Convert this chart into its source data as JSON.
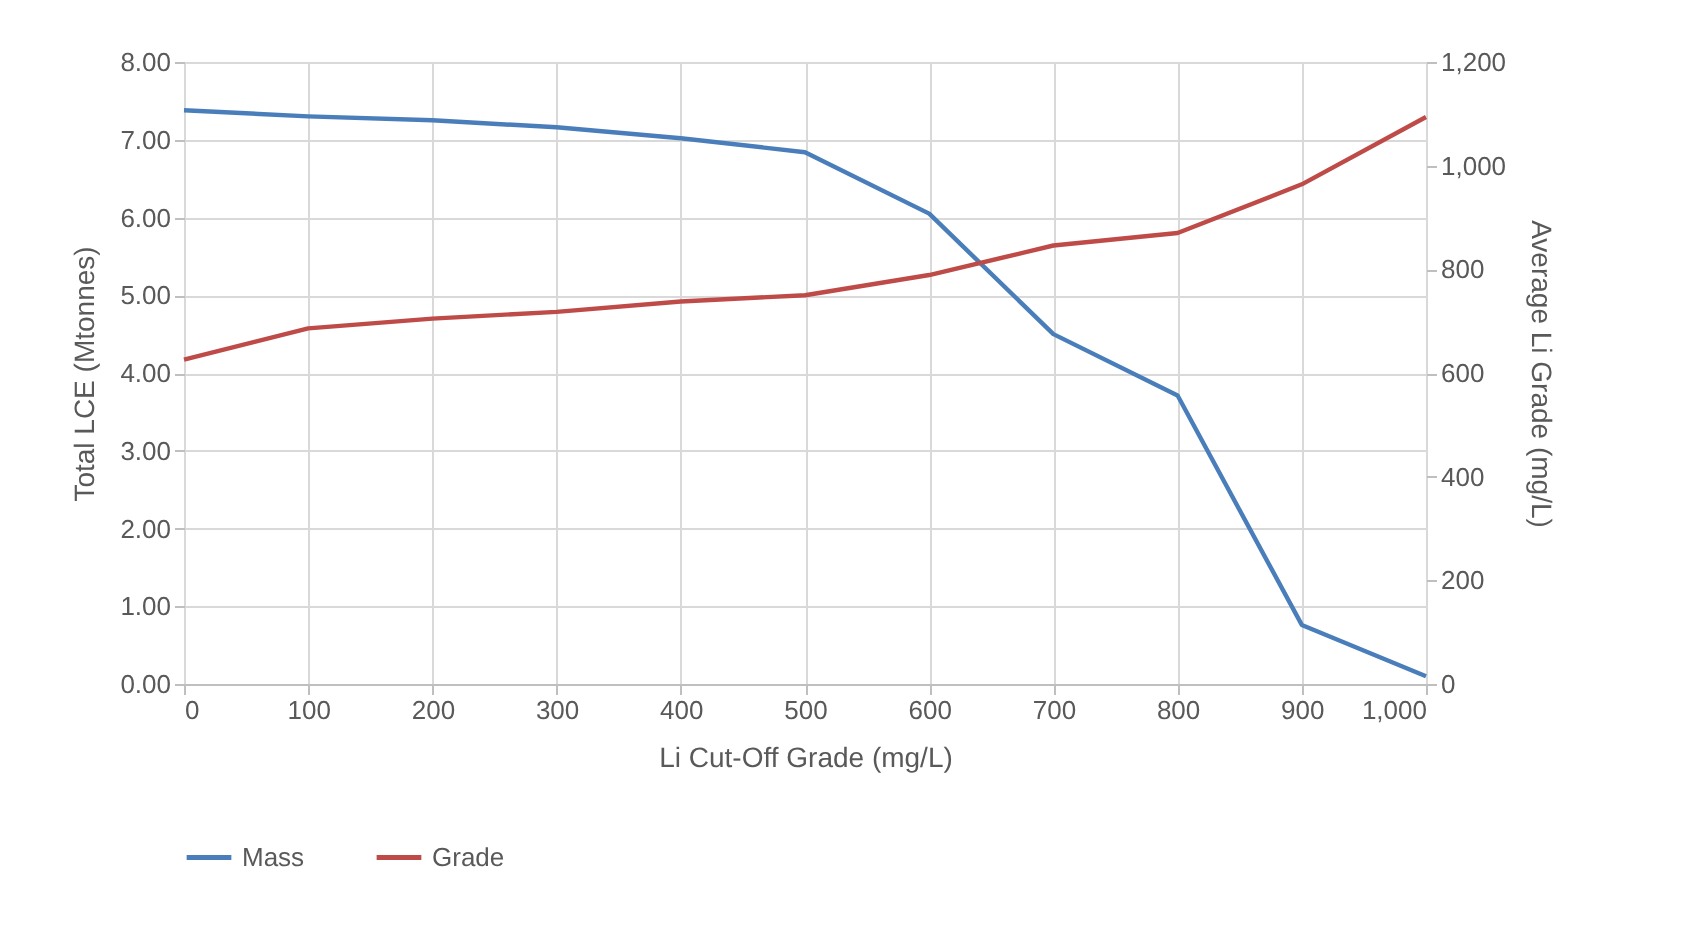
{
  "chart_data": {
    "type": "line",
    "xlabel": "Li Cut-Off Grade (mg/L)",
    "ylabel": "Total LCE (Mtonnes)",
    "y2label": "Average Li Grade (mg/L)",
    "x": [
      0,
      100,
      200,
      300,
      400,
      500,
      600,
      700,
      800,
      900,
      1000
    ],
    "series": [
      {
        "name": "Mass",
        "color": "#4a7ebb",
        "values": [
          7.38,
          7.3,
          7.25,
          7.16,
          7.02,
          6.84,
          6.05,
          4.5,
          3.71,
          0.76,
          0.1
        ]
      },
      {
        "name": "Grade",
        "color": "#be4b48",
        "axis": "y2",
        "values": [
          626,
          686,
          705,
          718,
          738,
          750,
          789,
          846,
          870,
          964,
          1094
        ]
      }
    ],
    "xlim": [
      0,
      1000
    ],
    "xticks": [
      {
        "value": 0,
        "label": "0"
      },
      {
        "value": 100,
        "label": "100"
      },
      {
        "value": 200,
        "label": "200"
      },
      {
        "value": 300,
        "label": "300"
      },
      {
        "value": 400,
        "label": "400"
      },
      {
        "value": 500,
        "label": "500"
      },
      {
        "value": 600,
        "label": "600"
      },
      {
        "value": 700,
        "label": "700"
      },
      {
        "value": 800,
        "label": "800"
      },
      {
        "value": 900,
        "label": "900"
      },
      {
        "value": 1000,
        "label": "1,000"
      }
    ],
    "ylim": [
      0,
      8
    ],
    "yticks": [
      {
        "value": 0,
        "label": "0.00"
      },
      {
        "value": 1,
        "label": "1.00"
      },
      {
        "value": 2,
        "label": "2.00"
      },
      {
        "value": 3,
        "label": "3.00"
      },
      {
        "value": 4,
        "label": "4.00"
      },
      {
        "value": 5,
        "label": "5.00"
      },
      {
        "value": 6,
        "label": "6.00"
      },
      {
        "value": 7,
        "label": "7.00"
      },
      {
        "value": 8,
        "label": "8.00"
      }
    ],
    "y2lim": [
      0,
      1200
    ],
    "y2ticks": [
      0,
      200,
      400,
      600,
      800,
      {
        "value": 1000,
        "label": "1,000"
      },
      {
        "value": 1200,
        "label": "1,200"
      }
    ],
    "grid": true,
    "legend": "bottom",
    "marker": "none",
    "line_style": "solid"
  }
}
